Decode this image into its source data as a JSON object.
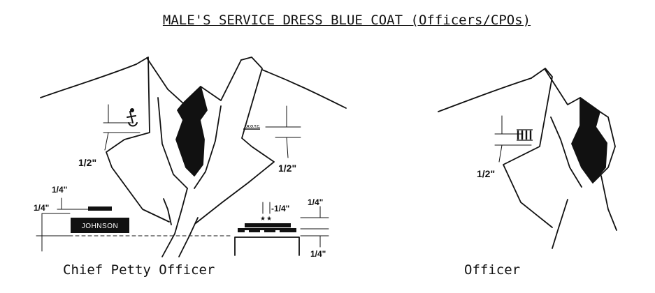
{
  "title": "MALE'S SERVICE DRESS BLUE COAT (Officers/CPOs)",
  "captions": {
    "left": "Chief Petty Officer",
    "right": "Officer"
  },
  "measurements": {
    "left_collar_offset": "1/2\"",
    "right_collar_offset": "1/2\"",
    "officer_collar_offset": "1/2\"",
    "nametag_gap": "1/4\"",
    "nametag_bottom": "1/4\"",
    "ribbon_spacing": "-1/4\"",
    "ribbon_top": "1/4\"",
    "ribbon_bottom": "1/4\""
  },
  "nametag_text": "JOHNSON",
  "collar_device_text": "J.R.O.T.C."
}
